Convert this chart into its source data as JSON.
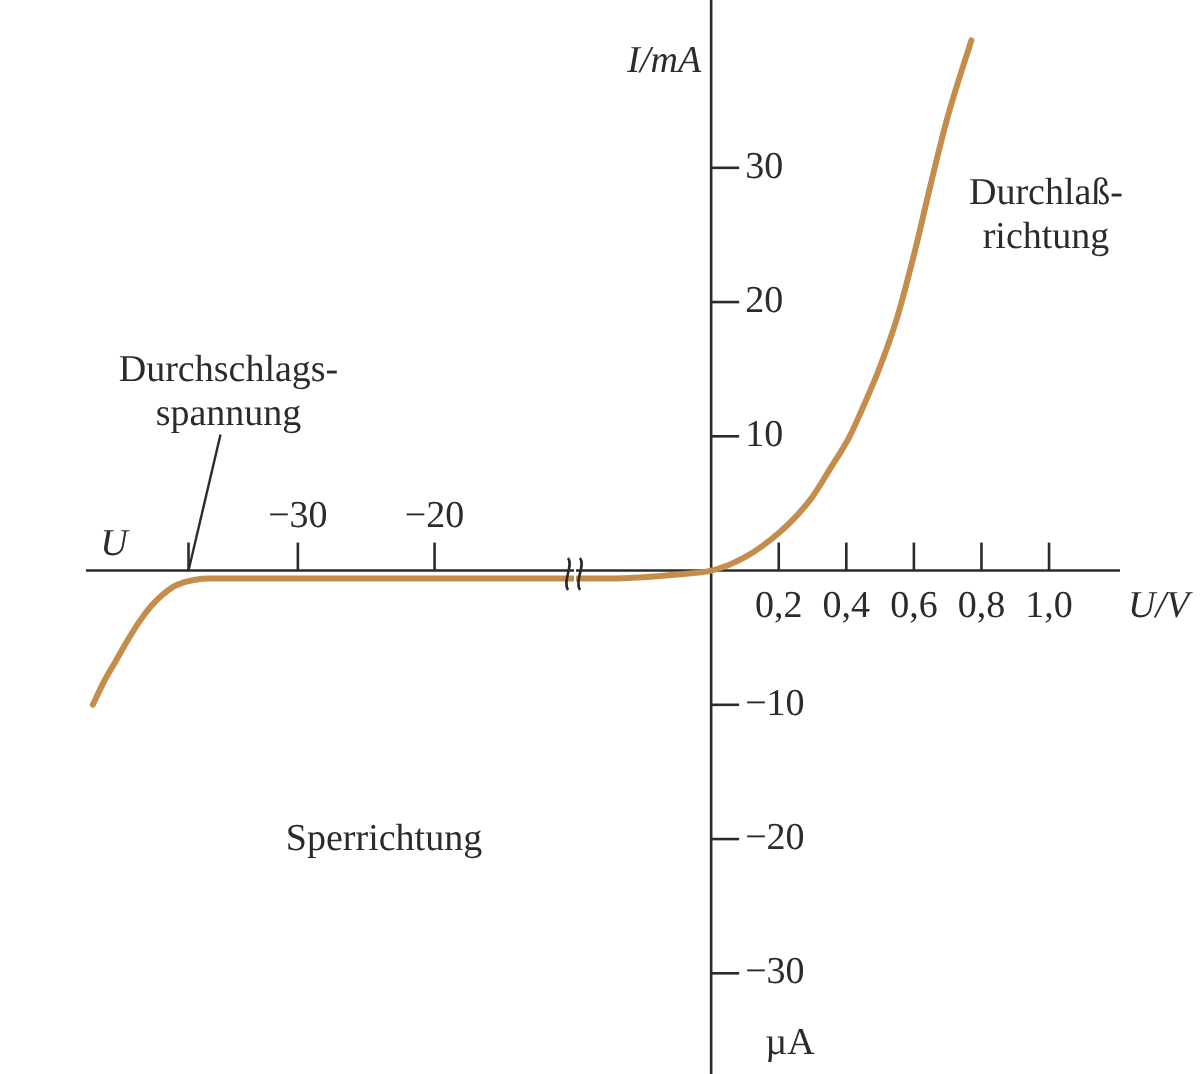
{
  "chart_data": [
    {
      "type": "line",
      "xlabel": "U",
      "x": [
        -45,
        -44.2,
        -43.3,
        -42.4,
        -41.6,
        -40.7,
        -39.9,
        -39.1,
        -38.4,
        -37.6,
        -36.5,
        -30,
        -20,
        -9.8
      ],
      "values": [
        -10,
        -8.3,
        -6.7,
        -5.1,
        -3.8,
        -2.6,
        -1.8,
        -1.2,
        -0.9,
        -0.7,
        -0.6,
        -0.6,
        -0.6,
        -0.6
      ],
      "color": "#c48d4b",
      "marker": "none",
      "xlim": [
        -45.5,
        -9.8
      ],
      "xticks": [
        {
          "value": -38,
          "label": null
        },
        {
          "value": -30,
          "label": "−30"
        },
        {
          "value": -20,
          "label": "−20"
        }
      ],
      "ylim": [
        -37.5,
        42.5
      ],
      "tick_labels": "x",
      "annotations": [
        {
          "text": "Durchschlags-\nspannung",
          "x": -38,
          "y": 0
        },
        "Sperrichtung"
      ]
    },
    {
      "type": "line",
      "xlabel": "U/V",
      "ylabel": "I/mA",
      "x": [
        -0.4,
        -0.3,
        -0.2,
        -0.1,
        0,
        0.05,
        0.1,
        0.15,
        0.2,
        0.25,
        0.3,
        0.35,
        0.41,
        0.45,
        0.5,
        0.55,
        0.6,
        0.65,
        0.7,
        0.77
      ],
      "values": [
        -0.6,
        -0.6,
        -0.5,
        -0.3,
        0,
        0.4,
        1.0,
        1.8,
        2.8,
        4.0,
        5.5,
        7.5,
        10,
        12.2,
        15.2,
        18.8,
        23.5,
        28.8,
        33.8,
        39.5
      ],
      "color": "#c48d4b",
      "marker": "none",
      "xlim": [
        -0.4,
        1.21
      ],
      "xticks": [
        {
          "value": 0.2,
          "label": "0,2"
        },
        {
          "value": 0.4,
          "label": "0,4"
        },
        {
          "value": 0.6,
          "label": "0,6"
        },
        {
          "value": 0.8,
          "label": "0,8"
        },
        {
          "value": 1.0,
          "label": "1,0"
        }
      ],
      "ylim": [
        -37.5,
        42.5
      ],
      "yticks": [
        {
          "value": -30,
          "label": "−30"
        },
        {
          "value": -20,
          "label": "−20"
        },
        {
          "value": -10,
          "label": "−10"
        },
        10,
        20,
        30
      ],
      "annotations": [
        "Durchlaß-\nrichtung",
        "µA"
      ]
    }
  ]
}
